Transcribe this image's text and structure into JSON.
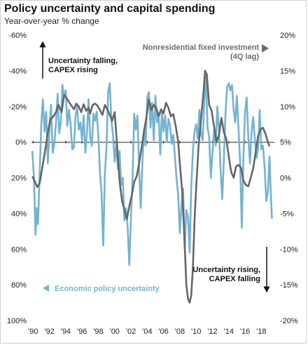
{
  "chart_data": {
    "type": "line",
    "title": "Policy uncertainty and capital spending",
    "subtitle": "Year-over-year % change",
    "x_ticks": [
      "'90",
      "'92",
      "'94",
      "'96",
      "'98",
      "'00",
      "'02",
      "'04",
      "'06",
      "'08",
      "'10",
      "'12",
      "'14",
      "'16",
      "'18"
    ],
    "xlim": [
      1989.8,
      2019.6
    ],
    "left_axis": {
      "inverted": true,
      "ylim": [
        -60,
        100
      ],
      "tick_values": [
        -60,
        -40,
        -20,
        0,
        20,
        40,
        60,
        80,
        100
      ],
      "tick_labels": [
        "-60%",
        "-40%",
        "-20%",
        "0%",
        "20%",
        "40%",
        "60%",
        "80%",
        "100%"
      ]
    },
    "right_axis": {
      "ylim": [
        -20,
        20
      ],
      "tick_values": [
        20,
        15,
        10,
        5,
        0,
        -5,
        -10,
        -15,
        -20
      ],
      "tick_labels": [
        "20%",
        "15%",
        "10%",
        "5%",
        "0%",
        "-5%",
        "-10%",
        "-15%",
        "-20%"
      ]
    },
    "series": [
      {
        "name": "Economic policy uncertainty",
        "axis": "left",
        "color": "#74b3cf",
        "points": [
          [
            1989.9,
            5
          ],
          [
            1990.1,
            20
          ],
          [
            1990.3,
            52
          ],
          [
            1990.45,
            37
          ],
          [
            1990.6,
            46
          ],
          [
            1990.8,
            18
          ],
          [
            1991.0,
            -10
          ],
          [
            1991.2,
            -24
          ],
          [
            1991.4,
            -6
          ],
          [
            1991.6,
            -17
          ],
          [
            1991.8,
            12
          ],
          [
            1992.0,
            -6
          ],
          [
            1992.2,
            -21
          ],
          [
            1992.4,
            6
          ],
          [
            1992.6,
            1
          ],
          [
            1992.8,
            -10
          ],
          [
            1993.0,
            -27
          ],
          [
            1993.2,
            -5
          ],
          [
            1993.4,
            -11
          ],
          [
            1993.6,
            -32
          ],
          [
            1993.8,
            -25
          ],
          [
            1994.0,
            -29
          ],
          [
            1994.2,
            -9
          ],
          [
            1994.4,
            -18
          ],
          [
            1994.6,
            -10
          ],
          [
            1994.8,
            4
          ],
          [
            1995.0,
            3
          ],
          [
            1995.2,
            -15
          ],
          [
            1995.4,
            -20
          ],
          [
            1995.6,
            -7
          ],
          [
            1995.8,
            -11
          ],
          [
            1996.0,
            -1
          ],
          [
            1996.2,
            -15
          ],
          [
            1996.4,
            6
          ],
          [
            1996.6,
            -5
          ],
          [
            1996.8,
            -24
          ],
          [
            1997.0,
            -3
          ],
          [
            1997.2,
            2
          ],
          [
            1997.4,
            -16
          ],
          [
            1997.6,
            -12
          ],
          [
            1997.8,
            -17
          ],
          [
            1998.0,
            -3
          ],
          [
            1998.2,
            17
          ],
          [
            1998.4,
            29
          ],
          [
            1998.6,
            58
          ],
          [
            1998.8,
            18
          ],
          [
            1999.0,
            3
          ],
          [
            1999.2,
            -28
          ],
          [
            1999.4,
            -33
          ],
          [
            1999.6,
            -12
          ],
          [
            1999.8,
            -4
          ],
          [
            2000.0,
            11
          ],
          [
            2000.2,
            1
          ],
          [
            2000.4,
            15
          ],
          [
            2000.6,
            5
          ],
          [
            2000.8,
            24
          ],
          [
            2001.0,
            20
          ],
          [
            2001.2,
            44
          ],
          [
            2001.4,
            37
          ],
          [
            2001.6,
            48
          ],
          [
            2001.8,
            69
          ],
          [
            2002.0,
            42
          ],
          [
            2002.2,
            20
          ],
          [
            2002.4,
            -16
          ],
          [
            2002.6,
            -7
          ],
          [
            2002.8,
            -15
          ],
          [
            2003.0,
            15
          ],
          [
            2003.2,
            37
          ],
          [
            2003.4,
            12
          ],
          [
            2003.6,
            -7
          ],
          [
            2003.8,
            2
          ],
          [
            2004.0,
            -25
          ],
          [
            2004.2,
            -28
          ],
          [
            2004.4,
            -8
          ],
          [
            2004.6,
            -22
          ],
          [
            2004.8,
            -1
          ],
          [
            2005.0,
            -26
          ],
          [
            2005.2,
            -11
          ],
          [
            2005.4,
            -14
          ],
          [
            2005.6,
            7
          ],
          [
            2005.8,
            -18
          ],
          [
            2006.0,
            -6
          ],
          [
            2006.2,
            -15
          ],
          [
            2006.4,
            0
          ],
          [
            2006.6,
            -13
          ],
          [
            2006.8,
            -9
          ],
          [
            2007.0,
            1
          ],
          [
            2007.2,
            -4
          ],
          [
            2007.4,
            8
          ],
          [
            2007.6,
            21
          ],
          [
            2007.8,
            30
          ],
          [
            2008.0,
            51
          ],
          [
            2008.2,
            35
          ],
          [
            2008.4,
            26
          ],
          [
            2008.6,
            60
          ],
          [
            2008.8,
            38
          ],
          [
            2009.0,
            42
          ],
          [
            2009.2,
            62
          ],
          [
            2009.4,
            25
          ],
          [
            2009.6,
            5
          ],
          [
            2009.8,
            -6
          ],
          [
            2010.0,
            -10
          ],
          [
            2010.2,
            -2
          ],
          [
            2010.4,
            -18
          ],
          [
            2010.6,
            -5
          ],
          [
            2010.8,
            -1
          ],
          [
            2011.0,
            -23
          ],
          [
            2011.2,
            -37
          ],
          [
            2011.4,
            -8
          ],
          [
            2011.6,
            -3
          ],
          [
            2011.8,
            20
          ],
          [
            2012.0,
            6
          ],
          [
            2012.2,
            -7
          ],
          [
            2012.4,
            2
          ],
          [
            2012.6,
            -20
          ],
          [
            2012.8,
            -7
          ],
          [
            2013.0,
            15
          ],
          [
            2013.2,
            32
          ],
          [
            2013.4,
            10
          ],
          [
            2013.6,
            -16
          ],
          [
            2013.8,
            -31
          ],
          [
            2014.0,
            -33
          ],
          [
            2014.2,
            -29
          ],
          [
            2014.4,
            -32
          ],
          [
            2014.6,
            -18
          ],
          [
            2014.8,
            -11
          ],
          [
            2015.0,
            -26
          ],
          [
            2015.2,
            -7
          ],
          [
            2015.4,
            12
          ],
          [
            2015.6,
            48
          ],
          [
            2015.8,
            8
          ],
          [
            2016.0,
            -17
          ],
          [
            2016.2,
            -25
          ],
          [
            2016.4,
            -3
          ],
          [
            2016.6,
            12
          ],
          [
            2016.8,
            -6
          ],
          [
            2017.0,
            -14
          ],
          [
            2017.2,
            -1
          ],
          [
            2017.4,
            9
          ],
          [
            2017.6,
            4
          ],
          [
            2017.8,
            -18
          ],
          [
            2018.0,
            4
          ],
          [
            2018.2,
            2
          ],
          [
            2018.4,
            14
          ],
          [
            2018.6,
            33
          ],
          [
            2018.8,
            28
          ],
          [
            2019.0,
            8
          ],
          [
            2019.15,
            28
          ],
          [
            2019.3,
            43
          ]
        ]
      },
      {
        "name": "Nonresidential fixed investment (4Q lag)",
        "axis": "right",
        "color": "#666666",
        "points": [
          [
            1989.9,
            0.2
          ],
          [
            1990.2,
            -0.5
          ],
          [
            1990.5,
            -1.3
          ],
          [
            1990.8,
            -0.8
          ],
          [
            1991.1,
            1.2
          ],
          [
            1991.5,
            4.0
          ],
          [
            1991.8,
            6.3
          ],
          [
            1992.1,
            8.2
          ],
          [
            1992.5,
            8.6
          ],
          [
            1992.8,
            9.2
          ],
          [
            1993.1,
            10.2
          ],
          [
            1993.5,
            9.2
          ],
          [
            1993.8,
            11.6
          ],
          [
            1994.1,
            11.2
          ],
          [
            1994.4,
            10.6
          ],
          [
            1994.7,
            10.1
          ],
          [
            1995.0,
            9.6
          ],
          [
            1995.3,
            10.4
          ],
          [
            1995.6,
            10.0
          ],
          [
            1995.9,
            9.2
          ],
          [
            1996.2,
            10.3
          ],
          [
            1996.5,
            9.4
          ],
          [
            1996.8,
            9.8
          ],
          [
            1997.0,
            9.0
          ],
          [
            1997.3,
            10.2
          ],
          [
            1997.6,
            10.4
          ],
          [
            1997.9,
            10.1
          ],
          [
            1998.2,
            9.5
          ],
          [
            1998.5,
            8.8
          ],
          [
            1998.8,
            10.2
          ],
          [
            1999.1,
            9.6
          ],
          [
            1999.4,
            8.8
          ],
          [
            1999.7,
            8.0
          ],
          [
            2000.0,
            9.2
          ],
          [
            2000.3,
            4.5
          ],
          [
            2000.6,
            -0.5
          ],
          [
            2000.9,
            -3.2
          ],
          [
            2001.2,
            -4.5
          ],
          [
            2001.5,
            -5.8
          ],
          [
            2001.8,
            -4.0
          ],
          [
            2002.1,
            -2.5
          ],
          [
            2002.4,
            -0.6
          ],
          [
            2002.7,
            0.2
          ],
          [
            2003.0,
            2.0
          ],
          [
            2003.3,
            4.2
          ],
          [
            2003.6,
            6.5
          ],
          [
            2003.9,
            8.5
          ],
          [
            2004.2,
            11.0
          ],
          [
            2004.5,
            9.5
          ],
          [
            2004.8,
            10.2
          ],
          [
            2005.1,
            9.8
          ],
          [
            2005.4,
            8.6
          ],
          [
            2005.7,
            9.6
          ],
          [
            2006.0,
            9.0
          ],
          [
            2006.3,
            10.5
          ],
          [
            2006.6,
            9.8
          ],
          [
            2006.9,
            8.6
          ],
          [
            2007.2,
            8.9
          ],
          [
            2007.5,
            7.2
          ],
          [
            2007.8,
            5.0
          ],
          [
            2008.0,
            2.0
          ],
          [
            2008.3,
            -2.0
          ],
          [
            2008.6,
            -9.5
          ],
          [
            2008.8,
            -15.0
          ],
          [
            2009.0,
            -17.0
          ],
          [
            2009.2,
            -17.5
          ],
          [
            2009.4,
            -16.5
          ],
          [
            2009.6,
            -12.5
          ],
          [
            2009.8,
            -6.0
          ],
          [
            2010.0,
            -1.5
          ],
          [
            2010.3,
            4.5
          ],
          [
            2010.6,
            8.2
          ],
          [
            2010.9,
            12.0
          ],
          [
            2011.1,
            15.0
          ],
          [
            2011.3,
            14.5
          ],
          [
            2011.6,
            10.2
          ],
          [
            2011.9,
            9.4
          ],
          [
            2012.2,
            7.2
          ],
          [
            2012.5,
            5.0
          ],
          [
            2012.8,
            6.0
          ],
          [
            2013.1,
            8.4
          ],
          [
            2013.4,
            6.4
          ],
          [
            2013.7,
            5.4
          ],
          [
            2014.0,
            3.0
          ],
          [
            2014.3,
            0.8
          ],
          [
            2014.6,
            0.0
          ],
          [
            2014.9,
            1.6
          ],
          [
            2015.2,
            1.8
          ],
          [
            2015.5,
            1.4
          ],
          [
            2015.8,
            -0.4
          ],
          [
            2016.1,
            -1.0
          ],
          [
            2016.4,
            -1.2
          ],
          [
            2016.7,
            0.0
          ],
          [
            2017.0,
            1.3
          ],
          [
            2017.3,
            3.6
          ],
          [
            2017.6,
            5.8
          ],
          [
            2017.9,
            6.8
          ],
          [
            2018.2,
            7.0
          ],
          [
            2018.5,
            6.2
          ],
          [
            2018.8,
            5.0
          ],
          [
            2019.0,
            4.4
          ]
        ]
      }
    ],
    "annotations": {
      "top_left": [
        "Uncertainty falling,",
        "CAPEX rising"
      ],
      "top_right": [
        "Nonresidential fixed investment",
        "(4Q lag)"
      ],
      "bottom_right": [
        "Uncertainty rising,",
        "CAPEX falling"
      ],
      "bottom_left": "Economic policy uncertainty"
    },
    "grid": false,
    "legend": "inline annotations"
  }
}
